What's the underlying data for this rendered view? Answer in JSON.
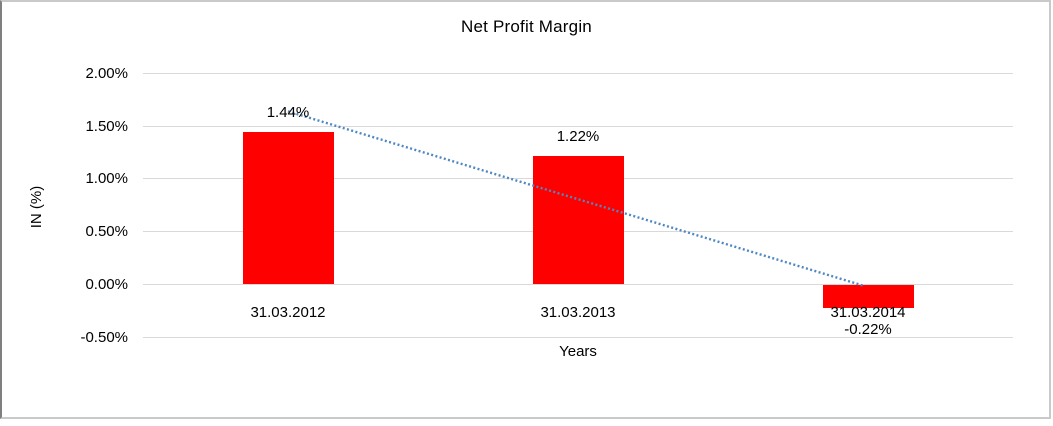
{
  "chart_data": {
    "type": "bar",
    "title": "Net Profit Margin",
    "xlabel": "Years",
    "ylabel": "IN (%)",
    "categories": [
      "31.03.2012",
      "31.03.2013",
      "31.03.2014"
    ],
    "values": [
      1.44,
      1.22,
      -0.22
    ],
    "data_labels": [
      "1.44%",
      "1.22%",
      "-0.22%"
    ],
    "y_ticks": [
      {
        "label": "2.00%",
        "value": 2.0
      },
      {
        "label": "1.50%",
        "value": 1.5
      },
      {
        "label": "1.00%",
        "value": 1.0
      },
      {
        "label": "0.50%",
        "value": 0.5
      },
      {
        "label": "0.00%",
        "value": 0.0
      },
      {
        "label": "-0.50%",
        "value": -0.5
      }
    ],
    "ylim": [
      -0.5,
      2.0
    ],
    "grid": true,
    "legend": "none",
    "colors": {
      "bar": "#ff0000",
      "gridline": "#d9d9d9",
      "text": "#000000",
      "trendline": "#4f88c3",
      "background": "#ffffff"
    },
    "trendline": {
      "type": "linear",
      "style": "dotted",
      "start_value": 1.64,
      "end_value": -0.01
    }
  }
}
